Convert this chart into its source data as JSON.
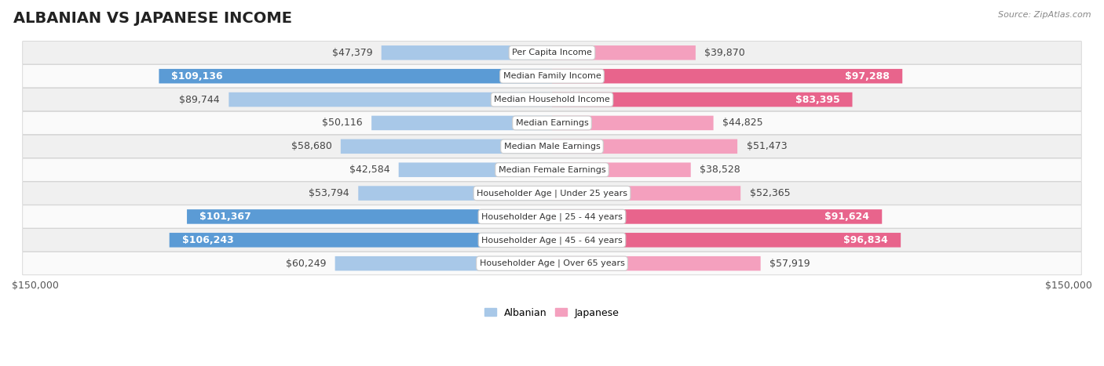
{
  "title": "ALBANIAN VS JAPANESE INCOME",
  "source": "Source: ZipAtlas.com",
  "categories": [
    "Per Capita Income",
    "Median Family Income",
    "Median Household Income",
    "Median Earnings",
    "Median Male Earnings",
    "Median Female Earnings",
    "Householder Age | Under 25 years",
    "Householder Age | 25 - 44 years",
    "Householder Age | 45 - 64 years",
    "Householder Age | Over 65 years"
  ],
  "albanian_values": [
    47379,
    109136,
    89744,
    50116,
    58680,
    42584,
    53794,
    101367,
    106243,
    60249
  ],
  "japanese_values": [
    39870,
    97288,
    83395,
    44825,
    51473,
    38528,
    52365,
    91624,
    96834,
    57919
  ],
  "albanian_labels": [
    "$47,379",
    "$109,136",
    "$89,744",
    "$50,116",
    "$58,680",
    "$42,584",
    "$53,794",
    "$101,367",
    "$106,243",
    "$60,249"
  ],
  "japanese_labels": [
    "$39,870",
    "$97,288",
    "$83,395",
    "$44,825",
    "$51,473",
    "$38,528",
    "$52,365",
    "$91,624",
    "$96,834",
    "$57,919"
  ],
  "albanian_inside": [
    false,
    true,
    false,
    false,
    false,
    false,
    false,
    true,
    true,
    false
  ],
  "japanese_inside": [
    false,
    true,
    true,
    false,
    false,
    false,
    false,
    true,
    true,
    false
  ],
  "albanian_color_light": "#a8c8e8",
  "albanian_color_dark": "#5b9bd5",
  "japanese_color_light": "#f4a0be",
  "japanese_color_dark": "#e8648c",
  "max_value": 150000,
  "bg_color": "#ffffff",
  "row_colors": [
    "#f0f0f0",
    "#fafafa"
  ],
  "bar_height": 0.62,
  "title_fontsize": 14,
  "label_fontsize": 9,
  "category_fontsize": 8,
  "legend_fontsize": 9,
  "source_fontsize": 8,
  "inside_label_threshold": 85000
}
